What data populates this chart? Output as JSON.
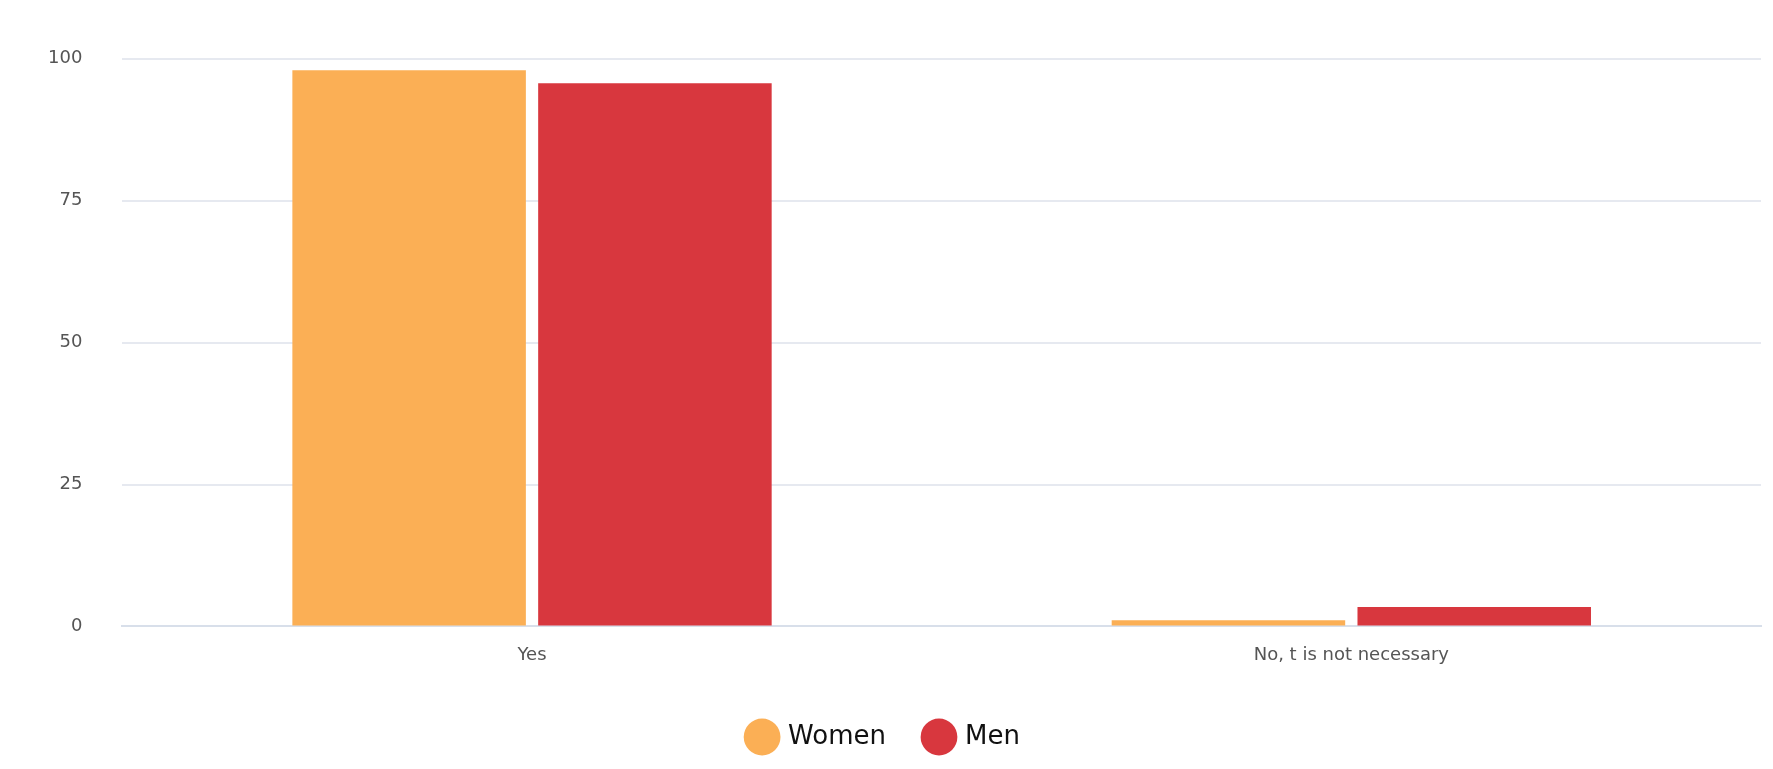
{
  "chart_data": {
    "type": "bar",
    "categories": [
      "Yes",
      "No, t is not necessary"
    ],
    "series": [
      {
        "name": "Women",
        "color": "#fbaf55",
        "values": [
          98,
          1.1
        ]
      },
      {
        "name": "Men",
        "color": "#d8373e",
        "values": [
          95.7,
          3.4
        ]
      }
    ],
    "ylim": [
      0,
      100
    ],
    "yticks": [
      0,
      25,
      50,
      75,
      100
    ],
    "grid": "y",
    "legend": "bottom"
  }
}
